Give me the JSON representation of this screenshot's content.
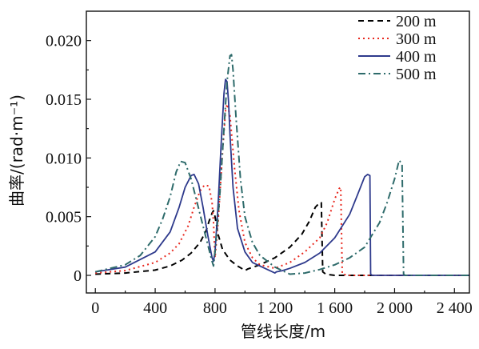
{
  "chart_data": {
    "type": "line",
    "xlabel": "管线长度/m",
    "ylabel": "曲率/(rad·m⁻¹)",
    "xlim": [
      -60,
      2500
    ],
    "ylim": [
      -0.0015,
      0.0225
    ],
    "x_ticks": [
      0,
      400,
      800,
      1200,
      1600,
      2000,
      2400
    ],
    "x_tick_labels": [
      "0",
      "400",
      "800",
      "1 200",
      "1 600",
      "2 000",
      "2 400"
    ],
    "y_ticks": [
      0,
      0.005,
      0.01,
      0.015,
      0.02
    ],
    "y_tick_labels": [
      "0",
      "0.005",
      "0.010",
      "0.015",
      "0.020"
    ],
    "legend_position": "top-right",
    "grid": false,
    "series": [
      {
        "name": "200 m",
        "color": "#000000",
        "dash": "dashed",
        "x": [
          0,
          200,
          400,
          500,
          580,
          640,
          700,
          740,
          760,
          780,
          790,
          800,
          820,
          850,
          900,
          950,
          990,
          1000,
          1020,
          1100,
          1200,
          1300,
          1380,
          1430,
          1470,
          1500,
          1510,
          1520,
          1540,
          1600,
          2000,
          2500
        ],
        "y": [
          0.0001,
          0.0002,
          0.00045,
          0.0008,
          0.0013,
          0.0019,
          0.0028,
          0.0038,
          0.0046,
          0.0053,
          0.0055,
          0.005,
          0.0035,
          0.0022,
          0.0013,
          0.0008,
          0.0005,
          0.0004,
          0.00055,
          0.0009,
          0.0015,
          0.0024,
          0.0035,
          0.0046,
          0.0058,
          0.0062,
          0.0062,
          0.0003,
          0.0001,
          0,
          0,
          0
        ]
      },
      {
        "name": "300 m",
        "color": "#e8281e",
        "dash": "dotted",
        "x": [
          0,
          200,
          400,
          500,
          560,
          620,
          660,
          700,
          730,
          760,
          780,
          790,
          800,
          820,
          850,
          870,
          880,
          900,
          930,
          960,
          1000,
          1050,
          1100,
          1200,
          1300,
          1400,
          1500,
          1550,
          1600,
          1630,
          1640,
          1650,
          1700,
          2000,
          2500
        ],
        "y": [
          0.0002,
          0.0004,
          0.0011,
          0.0019,
          0.0027,
          0.0042,
          0.0058,
          0.0072,
          0.0077,
          0.0076,
          0.0062,
          0.0045,
          0.0015,
          0.0045,
          0.0105,
          0.014,
          0.0146,
          0.0136,
          0.0092,
          0.0055,
          0.0028,
          0.0015,
          0.0009,
          0.0006,
          0.0011,
          0.002,
          0.0032,
          0.0045,
          0.0065,
          0.0074,
          0.0075,
          0.0001,
          0,
          0,
          0
        ]
      },
      {
        "name": "400 m",
        "color": "#2e3a8c",
        "dash": "solid",
        "x": [
          0,
          200,
          400,
          500,
          560,
          600,
          640,
          660,
          690,
          720,
          750,
          780,
          790,
          800,
          820,
          840,
          860,
          870,
          880,
          890,
          900,
          920,
          950,
          1000,
          1050,
          1100,
          1150,
          1200,
          1210,
          1250,
          1300,
          1400,
          1500,
          1600,
          1700,
          1750,
          1800,
          1820,
          1835,
          1840,
          1850,
          1900,
          2000,
          2500
        ],
        "y": [
          0.0003,
          0.0007,
          0.002,
          0.0037,
          0.0058,
          0.0075,
          0.0085,
          0.0086,
          0.0078,
          0.0058,
          0.0035,
          0.0015,
          0.0012,
          0.002,
          0.006,
          0.011,
          0.0155,
          0.0167,
          0.0165,
          0.0148,
          0.012,
          0.0075,
          0.004,
          0.002,
          0.0011,
          0.0008,
          0.0005,
          0.0002,
          0.0003,
          0.0004,
          0.0006,
          0.0011,
          0.0019,
          0.0032,
          0.0052,
          0.0068,
          0.0084,
          0.0086,
          0.0085,
          0.0001,
          0,
          0,
          0,
          0
        ]
      },
      {
        "name": "500 m",
        "color": "#2e6b6b",
        "dash": "dashdot",
        "x": [
          0,
          200,
          300,
          400,
          450,
          500,
          540,
          570,
          600,
          640,
          680,
          720,
          760,
          780,
          790,
          800,
          830,
          860,
          880,
          900,
          910,
          920,
          940,
          970,
          1000,
          1050,
          1100,
          1200,
          1300,
          1400,
          1500,
          1600,
          1700,
          1800,
          1900,
          1950,
          2000,
          2030,
          2050,
          2060,
          2070,
          2100,
          2500
        ],
        "y": [
          0.0003,
          0.0009,
          0.0017,
          0.0033,
          0.0048,
          0.0067,
          0.0088,
          0.0097,
          0.0096,
          0.0082,
          0.0062,
          0.0042,
          0.0022,
          0.0012,
          0.0008,
          0.002,
          0.0065,
          0.0125,
          0.0165,
          0.0187,
          0.0188,
          0.0175,
          0.0135,
          0.0082,
          0.005,
          0.0028,
          0.0017,
          0.0007,
          0.0001,
          0.0002,
          0.0005,
          0.0009,
          0.0015,
          0.0024,
          0.0045,
          0.0062,
          0.0082,
          0.0098,
          0.0095,
          0.0001,
          0,
          0,
          0
        ]
      }
    ]
  }
}
